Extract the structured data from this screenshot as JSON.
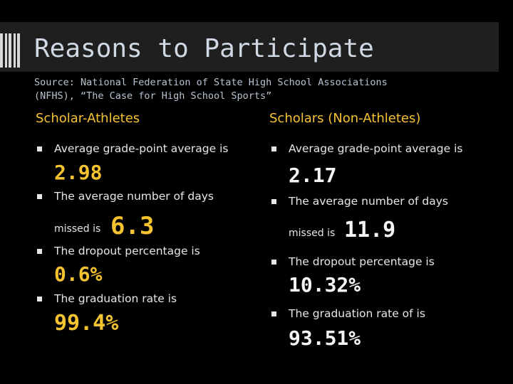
{
  "slide": {
    "title": "Reasons to Participate",
    "source_line1": "Source: National Federation of State High School Associations",
    "source_line2": "(NFHS), “The Case for High School Sports”"
  },
  "left": {
    "heading": "Scholar-Athletes",
    "gpa_label": "Average grade-point average is",
    "gpa_value": "2.98",
    "days_label": "The average number of days",
    "days_missed": "missed is",
    "days_value": "6.3",
    "dropout_label": "The dropout percentage is",
    "dropout_value": "0.6%",
    "grad_label": "The graduation rate is",
    "grad_value": "99.4%"
  },
  "right": {
    "heading": "Scholars (Non-Athletes)",
    "gpa_label": "Average grade-point average is",
    "gpa_value": "2.17",
    "days_label": "The average number of days",
    "days_missed": "missed is",
    "days_value": "11.9",
    "dropout_label": "The dropout percentage is",
    "dropout_value": "10.32%",
    "grad_label": "The graduation rate of is",
    "grad_value": "93.51%"
  },
  "colors": {
    "heading": "#f5c230",
    "title": "#cfd8e3",
    "background": "#000000"
  }
}
